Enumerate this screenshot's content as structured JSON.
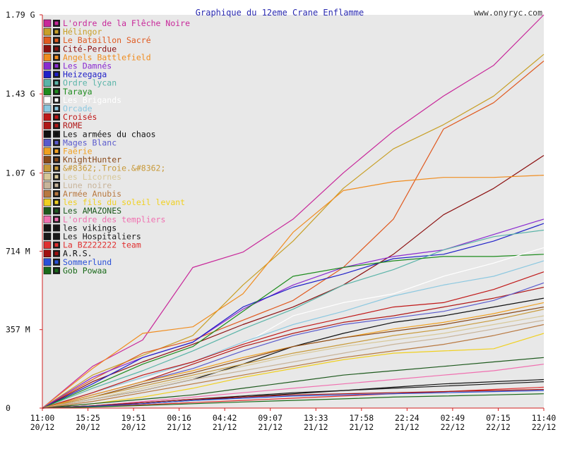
{
  "chart_data": {
    "type": "line",
    "title": "Graphique du 12eme Crane Enflamme",
    "source_label": "www.onyryc.com",
    "xlabel": "",
    "ylabel": "",
    "x_ticks": [
      {
        "time": "11:00",
        "date": "20/12"
      },
      {
        "time": "15:25",
        "date": "20/12"
      },
      {
        "time": "19:51",
        "date": "20/12"
      },
      {
        "time": "00:16",
        "date": "21/12"
      },
      {
        "time": "04:42",
        "date": "21/12"
      },
      {
        "time": "09:07",
        "date": "21/12"
      },
      {
        "time": "13:33",
        "date": "21/12"
      },
      {
        "time": "17:58",
        "date": "21/12"
      },
      {
        "time": "22:24",
        "date": "21/12"
      },
      {
        "time": "02:49",
        "date": "22/12"
      },
      {
        "time": "07:15",
        "date": "22/12"
      },
      {
        "time": "11:40",
        "date": "22/12"
      }
    ],
    "y_ticks": [
      "1.79 G",
      "1.43 G",
      "1.07 G",
      "714 M",
      "357 M",
      "0"
    ],
    "y_tick_values": [
      1790000000,
      1430000000,
      1070000000,
      714000000,
      357000000,
      0
    ],
    "ylim": [
      0,
      1790000000
    ],
    "grid": false,
    "legend_position": "top-left",
    "colors": {
      "plot_background": "#e8e8e8",
      "axis": "#d02020",
      "tick_label": "#101010",
      "title": "#2a2ab0"
    },
    "series": [
      {
        "name": "L'ordre de la Flêche Noire",
        "color": "#c8289a",
        "label_color": "#c8289a",
        "icon": "arrow-icon",
        "values": [
          0,
          190,
          310,
          640,
          710,
          860,
          1070,
          1260,
          1420,
          1560,
          1790
        ]
      },
      {
        "name": "Hélingor",
        "color": "#c8a028",
        "label_color": "#c8a028",
        "icon": "cross-icon",
        "values": [
          0,
          150,
          240,
          330,
          560,
          760,
          1000,
          1180,
          1290,
          1420,
          1610
        ]
      },
      {
        "name": "Le Bataillon Sacré",
        "color": "#e05a20",
        "label_color": "#e05a20",
        "icon": "shield-icon",
        "values": [
          0,
          130,
          250,
          310,
          400,
          490,
          640,
          860,
          1270,
          1390,
          1580
        ]
      },
      {
        "name": "Cité-Perdue",
        "color": "#8c1010",
        "label_color": "#8c1010",
        "icon": "v-icon",
        "values": [
          0,
          120,
          210,
          290,
          380,
          460,
          560,
          700,
          880,
          1000,
          1150
        ]
      },
      {
        "name": "Angels Battlefield",
        "color": "#f08c1e",
        "label_color": "#f08c1e",
        "icon": "wings-icon",
        "values": [
          0,
          180,
          340,
          370,
          520,
          800,
          990,
          1030,
          1050,
          1050,
          1060
        ]
      },
      {
        "name": "Les Damnés",
        "color": "#8a2ad0",
        "label_color": "#8a2ad0",
        "icon": "skull-icon",
        "values": [
          0,
          140,
          230,
          300,
          450,
          560,
          640,
          690,
          720,
          790,
          860
        ]
      },
      {
        "name": "Heizegaga",
        "color": "#2020c8",
        "label_color": "#2020c8",
        "icon": "h-icon",
        "values": [
          0,
          110,
          230,
          300,
          460,
          550,
          610,
          680,
          700,
          760,
          840
        ]
      },
      {
        "name": "Ordre lycan",
        "color": "#5ab4a8",
        "label_color": "#5ab4a8",
        "icon": "wolf-icon",
        "values": [
          0,
          90,
          170,
          260,
          360,
          450,
          560,
          630,
          720,
          780,
          810
        ]
      },
      {
        "name": "Taraya",
        "color": "#1e8c1e",
        "label_color": "#1e8c1e",
        "icon": "tree-icon",
        "values": [
          0,
          100,
          200,
          280,
          440,
          600,
          640,
          670,
          690,
          690,
          700
        ]
      },
      {
        "name": "Les Brigands",
        "color": "#ffffff",
        "label_color": "#ffffff",
        "icon": "circle-icon",
        "values": [
          0,
          60,
          130,
          200,
          290,
          420,
          480,
          520,
          600,
          660,
          730
        ]
      },
      {
        "name": "Orcade",
        "color": "#8cc8e0",
        "label_color": "#8cc8e0",
        "icon": "gate-icon",
        "values": [
          0,
          70,
          140,
          210,
          300,
          380,
          440,
          510,
          560,
          600,
          670
        ]
      },
      {
        "name": "Croisés",
        "color": "#c01818",
        "label_color": "#c01818",
        "icon": "cross-icon",
        "values": [
          0,
          70,
          150,
          210,
          290,
          360,
          410,
          460,
          480,
          540,
          620
        ]
      },
      {
        "name": "ROME",
        "color": "#b01818",
        "label_color": "#b01818",
        "icon": "r-icon",
        "values": [
          0,
          60,
          120,
          200,
          280,
          340,
          390,
          420,
          460,
          500,
          550
        ]
      },
      {
        "name": "Les armées du chaos",
        "color": "#101010",
        "label_color": "#101010",
        "icon": "chaos-icon",
        "values": [
          0,
          40,
          80,
          130,
          200,
          280,
          340,
          390,
          420,
          460,
          500
        ]
      },
      {
        "name": "Mages Blanc",
        "color": "#5a5acc",
        "label_color": "#5a5acc",
        "icon": "star-icon",
        "values": [
          0,
          60,
          120,
          180,
          260,
          330,
          380,
          410,
          440,
          490,
          570
        ]
      },
      {
        "name": "Faërie",
        "color": "#f0a020",
        "label_color": "#f0a020",
        "icon": "fairy-icon",
        "values": [
          0,
          60,
          120,
          170,
          230,
          280,
          320,
          360,
          390,
          430,
          480
        ]
      },
      {
        "name": "KnightHunter",
        "color": "#8a4a1a",
        "label_color": "#8a4a1a",
        "icon": "helmet-icon",
        "values": [
          0,
          50,
          110,
          160,
          220,
          280,
          320,
          350,
          380,
          420,
          460
        ]
      },
      {
        "name": "&#8362;.Troie.&#8362;",
        "color": "#c89a3a",
        "label_color": "#c89a3a",
        "icon": "horse-icon",
        "values": [
          0,
          50,
          100,
          150,
          200,
          250,
          290,
          330,
          360,
          400,
          450
        ]
      },
      {
        "name": "Les Licornes",
        "color": "#d8c898",
        "label_color": "#d8c898",
        "icon": "unicorn-icon",
        "values": [
          0,
          40,
          90,
          140,
          190,
          240,
          280,
          310,
          340,
          380,
          420
        ]
      },
      {
        "name": "Lune noire",
        "color": "#c8b49a",
        "label_color": "#c8b49a",
        "icon": "moon-icon",
        "values": [
          0,
          40,
          80,
          130,
          170,
          210,
          250,
          290,
          320,
          360,
          400
        ]
      },
      {
        "name": "Armée Anubis",
        "color": "#b87840",
        "label_color": "#b87840",
        "icon": "anubis-icon",
        "values": [
          0,
          30,
          70,
          110,
          150,
          190,
          230,
          260,
          290,
          330,
          380
        ]
      },
      {
        "name": "les fils du soleil levant",
        "color": "#f0d020",
        "label_color": "#f0d020",
        "icon": "sun-icon",
        "values": [
          0,
          20,
          50,
          90,
          140,
          180,
          220,
          250,
          260,
          270,
          340
        ]
      },
      {
        "name": "Les AMAZONES",
        "color": "#1e5a1e",
        "label_color": "#1e5a1e",
        "icon": "bow-icon",
        "values": [
          0,
          20,
          40,
          60,
          90,
          120,
          150,
          170,
          190,
          210,
          230
        ]
      },
      {
        "name": "L'ordre des templiers",
        "color": "#f070b0",
        "label_color": "#f070b0",
        "icon": "templar-cross-icon",
        "values": [
          0,
          10,
          30,
          50,
          70,
          90,
          110,
          130,
          150,
          170,
          200
        ]
      },
      {
        "name": "les vikings",
        "color": "#141414",
        "label_color": "#141414",
        "icon": "viking-icon",
        "values": [
          0,
          10,
          20,
          35,
          50,
          65,
          80,
          95,
          110,
          120,
          130
        ]
      },
      {
        "name": "Les Hospitaliers",
        "color": "#1a1a1a",
        "label_color": "#1a1a1a",
        "icon": "hospitaller-cross-icon",
        "values": [
          0,
          10,
          25,
          40,
          55,
          70,
          80,
          90,
          100,
          110,
          120
        ]
      },
      {
        "name": "La BZ222222 team",
        "color": "#e03030",
        "label_color": "#e03030",
        "icon": "bee-icon",
        "values": [
          0,
          8,
          15,
          25,
          35,
          45,
          55,
          65,
          75,
          85,
          95
        ]
      },
      {
        "name": "A.R.S.",
        "color": "#a01010",
        "label_color": "#101010",
        "icon": "square-icon",
        "values": [
          0,
          10,
          25,
          40,
          50,
          60,
          65,
          70,
          75,
          80,
          85
        ]
      },
      {
        "name": "Sommerlund",
        "color": "#2a50d8",
        "label_color": "#2a50d8",
        "icon": "s-icon",
        "values": [
          0,
          8,
          20,
          35,
          45,
          55,
          60,
          65,
          70,
          75,
          80
        ]
      },
      {
        "name": "Gob Powaa",
        "color": "#1a6a1a",
        "label_color": "#1a6a1a",
        "icon": "goblin-icon",
        "values": [
          0,
          5,
          12,
          20,
          28,
          35,
          42,
          50,
          55,
          60,
          65
        ]
      }
    ]
  }
}
